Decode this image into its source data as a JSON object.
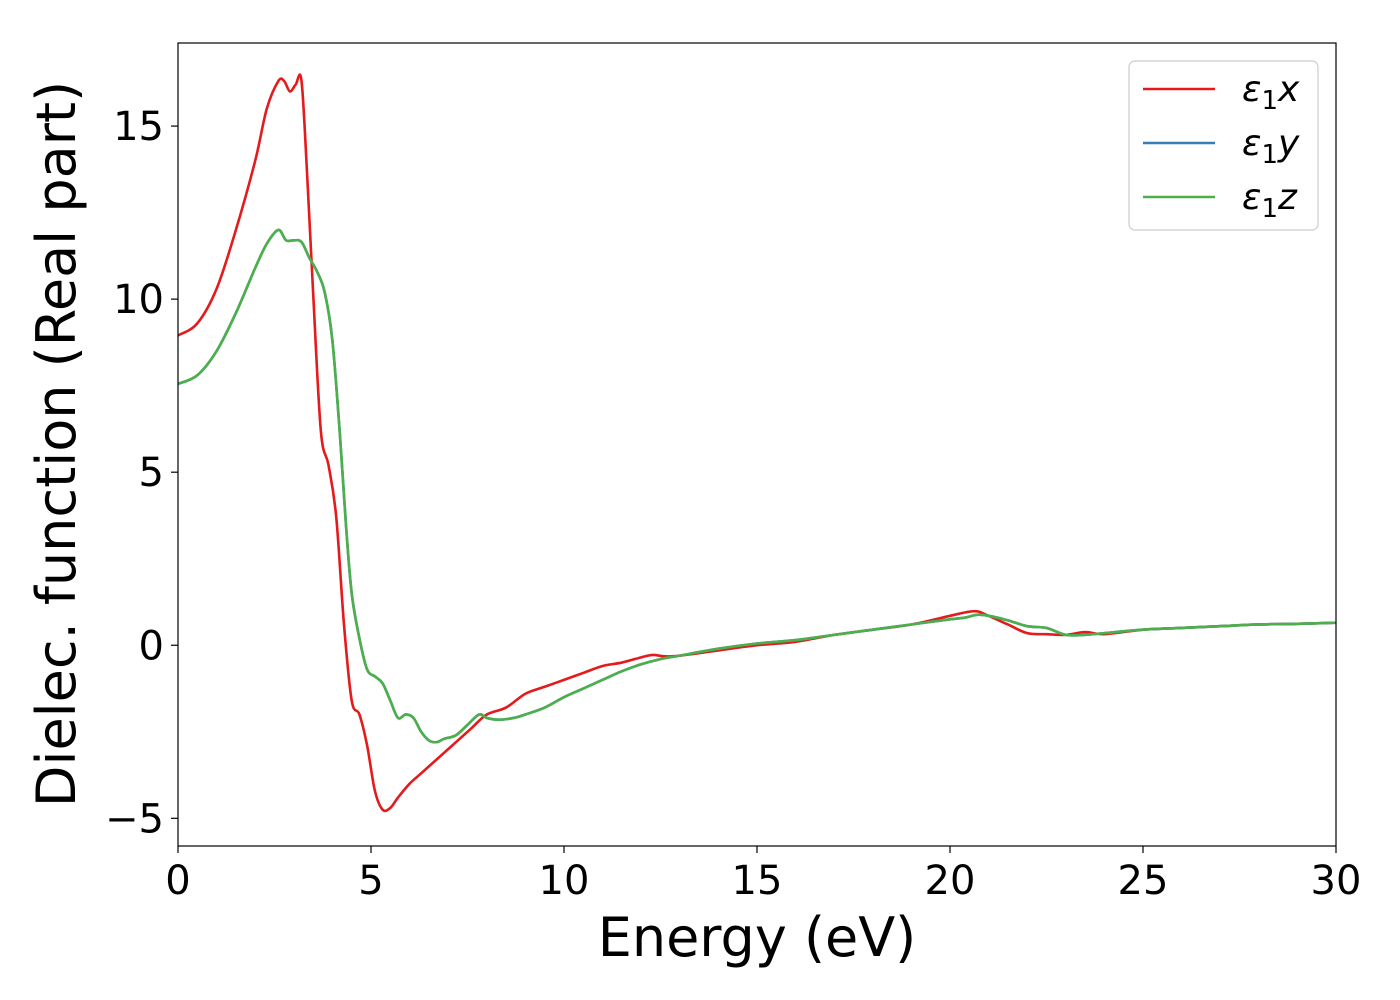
{
  "chart_data": {
    "type": "line",
    "title": "",
    "xlabel": "Energy (eV)",
    "ylabel": "Dielec. function (Real part)",
    "xlim": [
      0,
      30
    ],
    "ylim": [
      -5.8,
      17.4
    ],
    "xticks": [
      0,
      5,
      10,
      15,
      20,
      25,
      30
    ],
    "xtick_labels": [
      "0",
      "5",
      "10",
      "15",
      "20",
      "25",
      "30"
    ],
    "yticks": [
      -5,
      0,
      5,
      10,
      15
    ],
    "ytick_labels": [
      "−5",
      "0",
      "5",
      "10",
      "15"
    ],
    "grid": false,
    "legend_position": "top-right",
    "series": [
      {
        "name": "ε1x",
        "legend_symbol": "ε",
        "legend_sub": "1",
        "legend_axis": "x",
        "color": "#e41a1c",
        "x": [
          0,
          0.5,
          1.0,
          1.5,
          2.0,
          2.3,
          2.6,
          2.75,
          2.9,
          3.05,
          3.2,
          3.35,
          3.5,
          3.7,
          3.9,
          4.1,
          4.3,
          4.5,
          4.7,
          4.9,
          5.1,
          5.3,
          5.5,
          5.7,
          6.0,
          6.3,
          6.6,
          6.9,
          7.2,
          7.6,
          8.0,
          8.5,
          9.0,
          9.5,
          10.0,
          10.5,
          11.0,
          11.5,
          12.0,
          12.3,
          12.6,
          13.0,
          14.0,
          15.0,
          16.0,
          17.0,
          18.0,
          19.0,
          20.0,
          20.4,
          20.7,
          21.0,
          21.5,
          22.0,
          22.5,
          23.0,
          23.5,
          24.0,
          25.0,
          26.0,
          27.0,
          28.0,
          29.0,
          30.0
        ],
        "y": [
          8.95,
          9.3,
          10.3,
          12.0,
          14.0,
          15.5,
          16.3,
          16.3,
          16.0,
          16.2,
          16.3,
          13.5,
          10.2,
          6.2,
          5.2,
          3.7,
          0.6,
          -1.6,
          -2.0,
          -2.9,
          -4.2,
          -4.75,
          -4.7,
          -4.4,
          -4.0,
          -3.7,
          -3.4,
          -3.1,
          -2.8,
          -2.4,
          -2.0,
          -1.8,
          -1.4,
          -1.2,
          -1.0,
          -0.8,
          -0.6,
          -0.5,
          -0.35,
          -0.28,
          -0.32,
          -0.3,
          -0.15,
          0.0,
          0.1,
          0.3,
          0.45,
          0.6,
          0.85,
          0.95,
          0.98,
          0.85,
          0.6,
          0.35,
          0.32,
          0.3,
          0.38,
          0.32,
          0.45,
          0.5,
          0.55,
          0.6,
          0.62,
          0.65
        ]
      },
      {
        "name": "ε1y",
        "legend_symbol": "ε",
        "legend_sub": "1",
        "legend_axis": "y",
        "color": "#377eb8",
        "x": [
          0,
          0.5,
          1.0,
          1.5,
          2.0,
          2.3,
          2.6,
          2.8,
          3.0,
          3.2,
          3.4,
          3.6,
          3.8,
          4.0,
          4.2,
          4.35,
          4.5,
          4.7,
          4.9,
          5.1,
          5.3,
          5.5,
          5.7,
          5.9,
          6.1,
          6.3,
          6.5,
          6.7,
          6.9,
          7.2,
          7.5,
          7.8,
          8.0,
          8.3,
          8.7,
          9.0,
          9.5,
          10.0,
          10.5,
          11.0,
          11.5,
          12.0,
          12.5,
          13.0,
          14.0,
          15.0,
          16.0,
          17.0,
          18.0,
          19.0,
          20.0,
          20.4,
          20.7,
          21.0,
          21.5,
          22.0,
          22.5,
          23.0,
          23.5,
          24.0,
          25.0,
          26.0,
          27.0,
          28.0,
          29.0,
          30.0
        ],
        "y": [
          7.55,
          7.8,
          8.5,
          9.6,
          10.9,
          11.6,
          12.0,
          11.7,
          11.7,
          11.65,
          11.2,
          10.8,
          10.2,
          8.8,
          6.0,
          3.5,
          1.5,
          0.2,
          -0.7,
          -0.9,
          -1.1,
          -1.6,
          -2.1,
          -2.0,
          -2.1,
          -2.5,
          -2.75,
          -2.8,
          -2.7,
          -2.6,
          -2.3,
          -2.0,
          -2.1,
          -2.15,
          -2.1,
          -2.0,
          -1.8,
          -1.5,
          -1.25,
          -1.0,
          -0.75,
          -0.55,
          -0.4,
          -0.3,
          -0.1,
          0.05,
          0.15,
          0.3,
          0.45,
          0.6,
          0.75,
          0.8,
          0.88,
          0.85,
          0.72,
          0.55,
          0.5,
          0.3,
          0.3,
          0.35,
          0.45,
          0.5,
          0.55,
          0.6,
          0.62,
          0.65
        ]
      },
      {
        "name": "ε1z",
        "legend_symbol": "ε",
        "legend_sub": "1",
        "legend_axis": "z",
        "color": "#4daf4a",
        "x": [
          0,
          0.5,
          1.0,
          1.5,
          2.0,
          2.3,
          2.6,
          2.8,
          3.0,
          3.2,
          3.4,
          3.6,
          3.8,
          4.0,
          4.2,
          4.35,
          4.5,
          4.7,
          4.9,
          5.1,
          5.3,
          5.5,
          5.7,
          5.9,
          6.1,
          6.3,
          6.5,
          6.7,
          6.9,
          7.2,
          7.5,
          7.8,
          8.0,
          8.3,
          8.7,
          9.0,
          9.5,
          10.0,
          10.5,
          11.0,
          11.5,
          12.0,
          12.5,
          13.0,
          14.0,
          15.0,
          16.0,
          17.0,
          18.0,
          19.0,
          20.0,
          20.4,
          20.7,
          21.0,
          21.5,
          22.0,
          22.5,
          23.0,
          23.5,
          24.0,
          25.0,
          26.0,
          27.0,
          28.0,
          29.0,
          30.0
        ],
        "y": [
          7.55,
          7.8,
          8.5,
          9.6,
          10.9,
          11.6,
          12.0,
          11.7,
          11.7,
          11.65,
          11.2,
          10.8,
          10.2,
          8.8,
          6.0,
          3.5,
          1.5,
          0.2,
          -0.7,
          -0.9,
          -1.1,
          -1.6,
          -2.1,
          -2.0,
          -2.1,
          -2.5,
          -2.75,
          -2.8,
          -2.7,
          -2.6,
          -2.3,
          -2.0,
          -2.1,
          -2.15,
          -2.1,
          -2.0,
          -1.8,
          -1.5,
          -1.25,
          -1.0,
          -0.75,
          -0.55,
          -0.4,
          -0.3,
          -0.1,
          0.05,
          0.15,
          0.3,
          0.45,
          0.6,
          0.75,
          0.8,
          0.88,
          0.85,
          0.72,
          0.55,
          0.5,
          0.3,
          0.3,
          0.35,
          0.45,
          0.5,
          0.55,
          0.6,
          0.62,
          0.65
        ]
      }
    ]
  }
}
